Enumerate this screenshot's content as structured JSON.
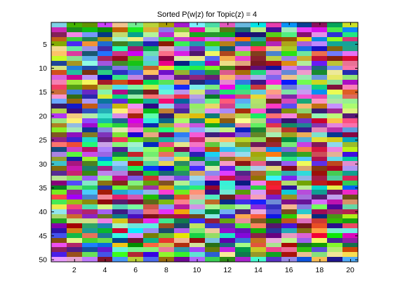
{
  "chart_data": {
    "type": "heatmap",
    "title": "Sorted P(w|z) for Topic(z) = 4",
    "xlabel": "",
    "ylabel": "",
    "columns": 20,
    "rows": 50,
    "xlim": [
      0.5,
      20.5
    ],
    "ylim": [
      50.5,
      0.5
    ],
    "x_ticks": [
      2,
      4,
      6,
      8,
      10,
      12,
      14,
      16,
      18,
      20
    ],
    "y_ticks": [
      5,
      10,
      15,
      20,
      25,
      30,
      35,
      40,
      45,
      50
    ],
    "y_reversed": true,
    "grid": false,
    "legend": "none",
    "colormap": "random-saturated-rgb",
    "color_seed": 20240604,
    "axes_color": "#000000",
    "background": "#ffffff"
  }
}
